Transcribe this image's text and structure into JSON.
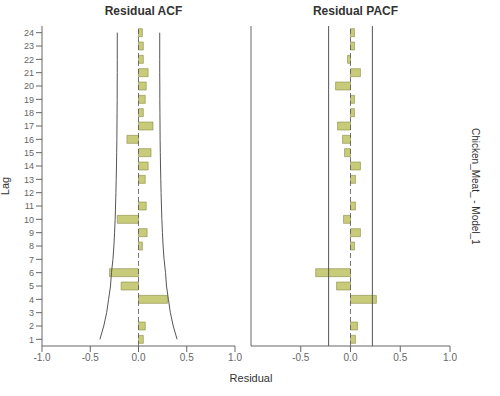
{
  "chart_data": [
    {
      "type": "bar",
      "title": "Residual ACF",
      "orientation": "horizontal",
      "ylabel": "Lag",
      "xlabel": "Residual",
      "categories": [
        1,
        2,
        3,
        4,
        5,
        6,
        7,
        8,
        9,
        10,
        11,
        12,
        13,
        14,
        15,
        16,
        17,
        18,
        19,
        20,
        21,
        22,
        23,
        24
      ],
      "values": [
        0.05,
        0.07,
        0.0,
        0.3,
        -0.18,
        -0.3,
        0.0,
        0.04,
        0.09,
        -0.22,
        0.08,
        0.0,
        0.07,
        0.1,
        0.13,
        -0.12,
        0.15,
        0.05,
        0.07,
        0.08,
        0.1,
        0.05,
        0.05,
        0.04
      ],
      "conf_upper": [
        0.4,
        0.36,
        0.33,
        0.31,
        0.29,
        0.28,
        0.265,
        0.255,
        0.248,
        0.242,
        0.238,
        0.234,
        0.231,
        0.228,
        0.226,
        0.224,
        0.223,
        0.222,
        0.221,
        0.221,
        0.22,
        0.22,
        0.22,
        0.22
      ],
      "conf_lower": [
        -0.4,
        -0.36,
        -0.33,
        -0.31,
        -0.29,
        -0.28,
        -0.265,
        -0.255,
        -0.248,
        -0.242,
        -0.238,
        -0.234,
        -0.231,
        -0.228,
        -0.226,
        -0.224,
        -0.223,
        -0.222,
        -0.221,
        -0.221,
        -0.22,
        -0.22,
        -0.22,
        -0.22
      ],
      "color": "#c8cc7a",
      "xlim": [
        -1.0,
        1.0
      ],
      "xticks": [
        {
          "value": -1.0,
          "label": "-1.0"
        },
        {
          "value": -0.5,
          "label": "-0.5"
        },
        {
          "value": 0.0,
          "label": "0.0"
        },
        {
          "value": 0.5,
          "label": "0.5"
        },
        {
          "value": 1.0,
          "label": "1.0"
        }
      ],
      "grid": false
    },
    {
      "type": "bar",
      "title": "Residual PACF",
      "orientation": "horizontal",
      "annotation": "Chicken_Meat_ - Model_1",
      "categories": [
        1,
        2,
        3,
        4,
        5,
        6,
        7,
        8,
        9,
        10,
        11,
        12,
        13,
        14,
        15,
        16,
        17,
        18,
        19,
        20,
        21,
        22,
        23,
        24
      ],
      "values": [
        0.05,
        0.07,
        0.0,
        0.26,
        -0.14,
        -0.35,
        0.0,
        0.04,
        0.1,
        -0.07,
        0.05,
        0.0,
        0.05,
        0.1,
        -0.06,
        -0.08,
        -0.13,
        0.04,
        0.04,
        -0.15,
        0.1,
        -0.03,
        0.04,
        0.04
      ],
      "conf_upper": 0.22,
      "conf_lower": -0.22,
      "color": "#c8cc7a",
      "xlim": [
        -1.0,
        1.0
      ],
      "xticks": [
        {
          "value": -1.0,
          "label": "-1.0"
        },
        {
          "value": -0.5,
          "label": "-0.5"
        },
        {
          "value": 0.0,
          "label": "0.0"
        },
        {
          "value": 0.5,
          "label": "0.5"
        },
        {
          "value": 1.0,
          "label": "1.0"
        }
      ],
      "tick_labels": "x",
      "grid": false
    }
  ]
}
